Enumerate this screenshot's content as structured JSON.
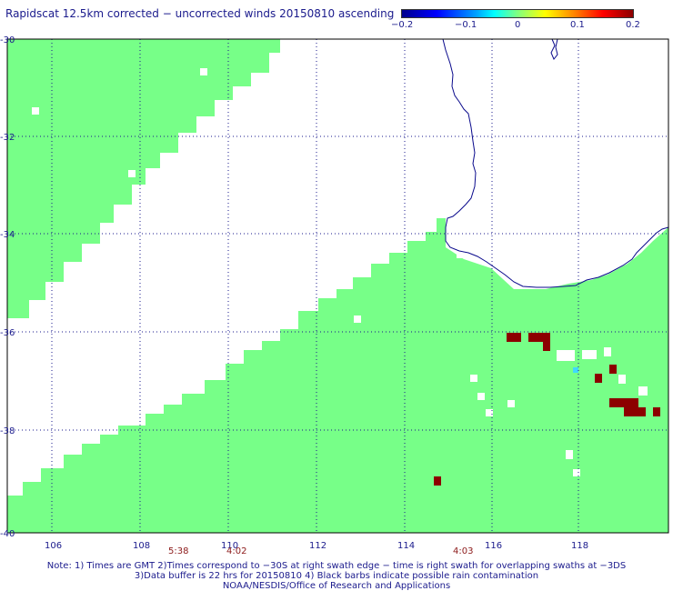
{
  "title": "Rapidscat 12.5km corrected − uncorrected winds 20150810 ascending",
  "colorbar": {
    "ticks": [
      "−0.2",
      "−0.1",
      "0",
      "0.1",
      "0.2"
    ],
    "range": [
      -0.2,
      0.2
    ]
  },
  "map": {
    "lon_labels": [
      "106",
      "108",
      "110",
      "112",
      "114",
      "116",
      "118"
    ],
    "lat_labels": [
      "-30",
      "-32",
      "-34",
      "-36",
      "-38",
      "-40"
    ],
    "time_labels": [
      "5:38",
      "4:02",
      "4:03"
    ],
    "swath_color": "#77ff88",
    "high_color": "#8c0000",
    "coast_color": "#0a0a8c"
  },
  "notes": {
    "line1": "Note: 1) Times are GMT 2)Times correspond to −30S at right swath edge − time is right swath for overlapping swaths at −3DS",
    "line2": "3)Data buffer is 22 hrs for 20150810 4) Black barbs indicate possible rain contamination",
    "line3": "NOAA/NESDIS/Office of Research and Applications"
  }
}
